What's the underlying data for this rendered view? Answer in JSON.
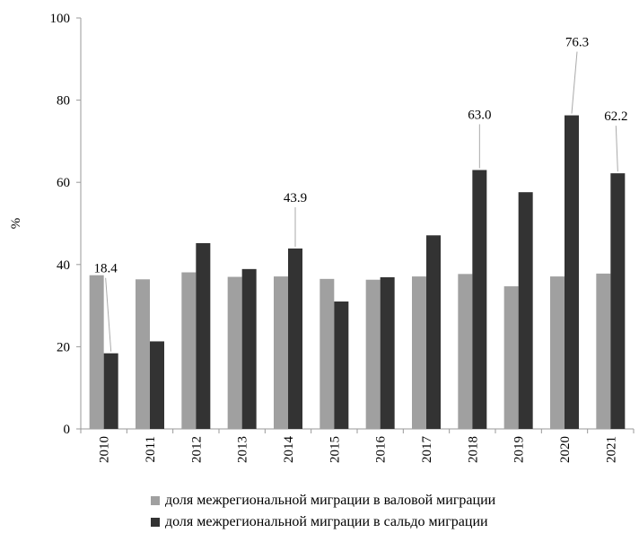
{
  "chart_data": {
    "type": "bar",
    "categories": [
      "2010",
      "2011",
      "2012",
      "2013",
      "2014",
      "2015",
      "2016",
      "2017",
      "2018",
      "2019",
      "2020",
      "2021"
    ],
    "series": [
      {
        "name": "доля межрегиональной миграции в валовой миграции",
        "color": "#a0a0a0",
        "values": [
          37.4,
          36.4,
          38.1,
          37.0,
          37.1,
          36.5,
          36.3,
          37.1,
          37.7,
          34.7,
          37.1,
          37.8
        ]
      },
      {
        "name": "доля межрегиональной миграции в сальдо миграции",
        "color": "#333333",
        "values": [
          18.4,
          21.3,
          45.2,
          38.9,
          43.9,
          31.0,
          36.9,
          47.1,
          63.0,
          57.6,
          76.3,
          62.2
        ]
      }
    ],
    "ylabel": "%",
    "ylim": [
      0,
      100
    ],
    "yticks": [
      0,
      20,
      40,
      60,
      80,
      100
    ],
    "legend_position": "bottom",
    "grid": false,
    "annotations": [
      {
        "category": "2010",
        "series": 1,
        "text": "18.4"
      },
      {
        "category": "2014",
        "series": 1,
        "text": "43.9"
      },
      {
        "category": "2018",
        "series": 1,
        "text": "63.0"
      },
      {
        "category": "2020",
        "series": 1,
        "text": "76.3"
      },
      {
        "category": "2021",
        "series": 1,
        "text": "62.2"
      }
    ]
  }
}
